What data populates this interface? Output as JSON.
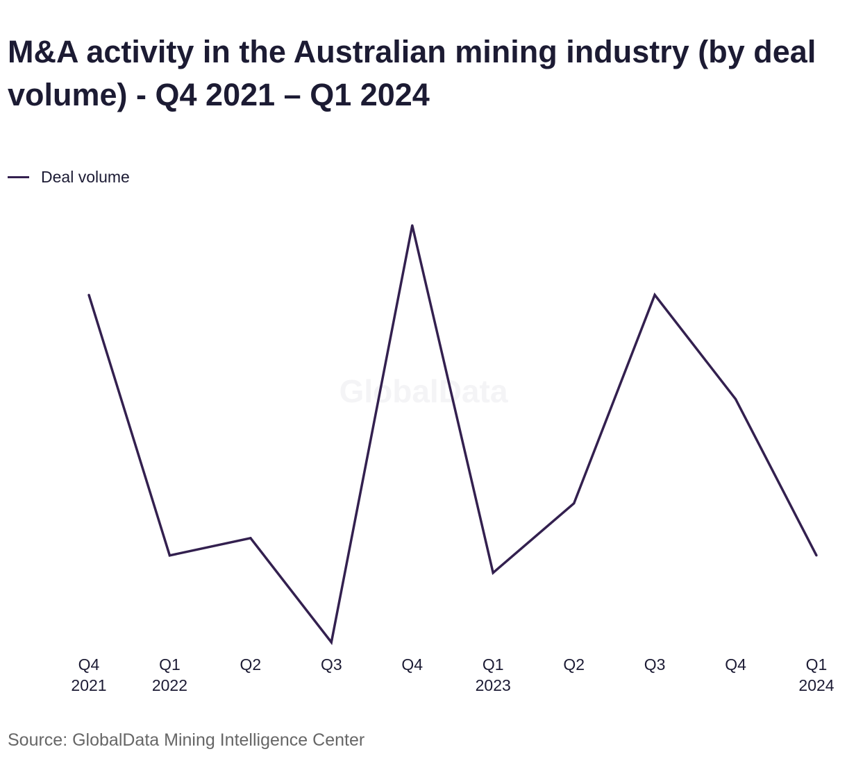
{
  "chart_data": {
    "type": "line",
    "title": "M&A activity in the Australian mining industry (by deal volume) - Q4 2021 – Q1 2024",
    "categories": [
      [
        "Q4",
        "2021"
      ],
      [
        "Q1",
        "2022"
      ],
      [
        "Q2",
        ""
      ],
      [
        "Q3",
        ""
      ],
      [
        "Q4",
        ""
      ],
      [
        "Q1",
        "2023"
      ],
      [
        "Q2",
        ""
      ],
      [
        "Q3",
        ""
      ],
      [
        "Q4",
        ""
      ],
      [
        "Q1",
        "2024"
      ]
    ],
    "series": [
      {
        "name": "Deal volume",
        "color": "#33204f",
        "values": [
          29,
          14,
          15,
          9,
          33,
          13,
          17,
          29,
          23,
          14
        ]
      }
    ],
    "ylim": [
      9,
      33
    ],
    "grid": false,
    "legend": "top-left",
    "xlabel": "",
    "ylabel": ""
  },
  "watermark": "GlobalData",
  "source": "Source: GlobalData Mining Intelligence Center"
}
